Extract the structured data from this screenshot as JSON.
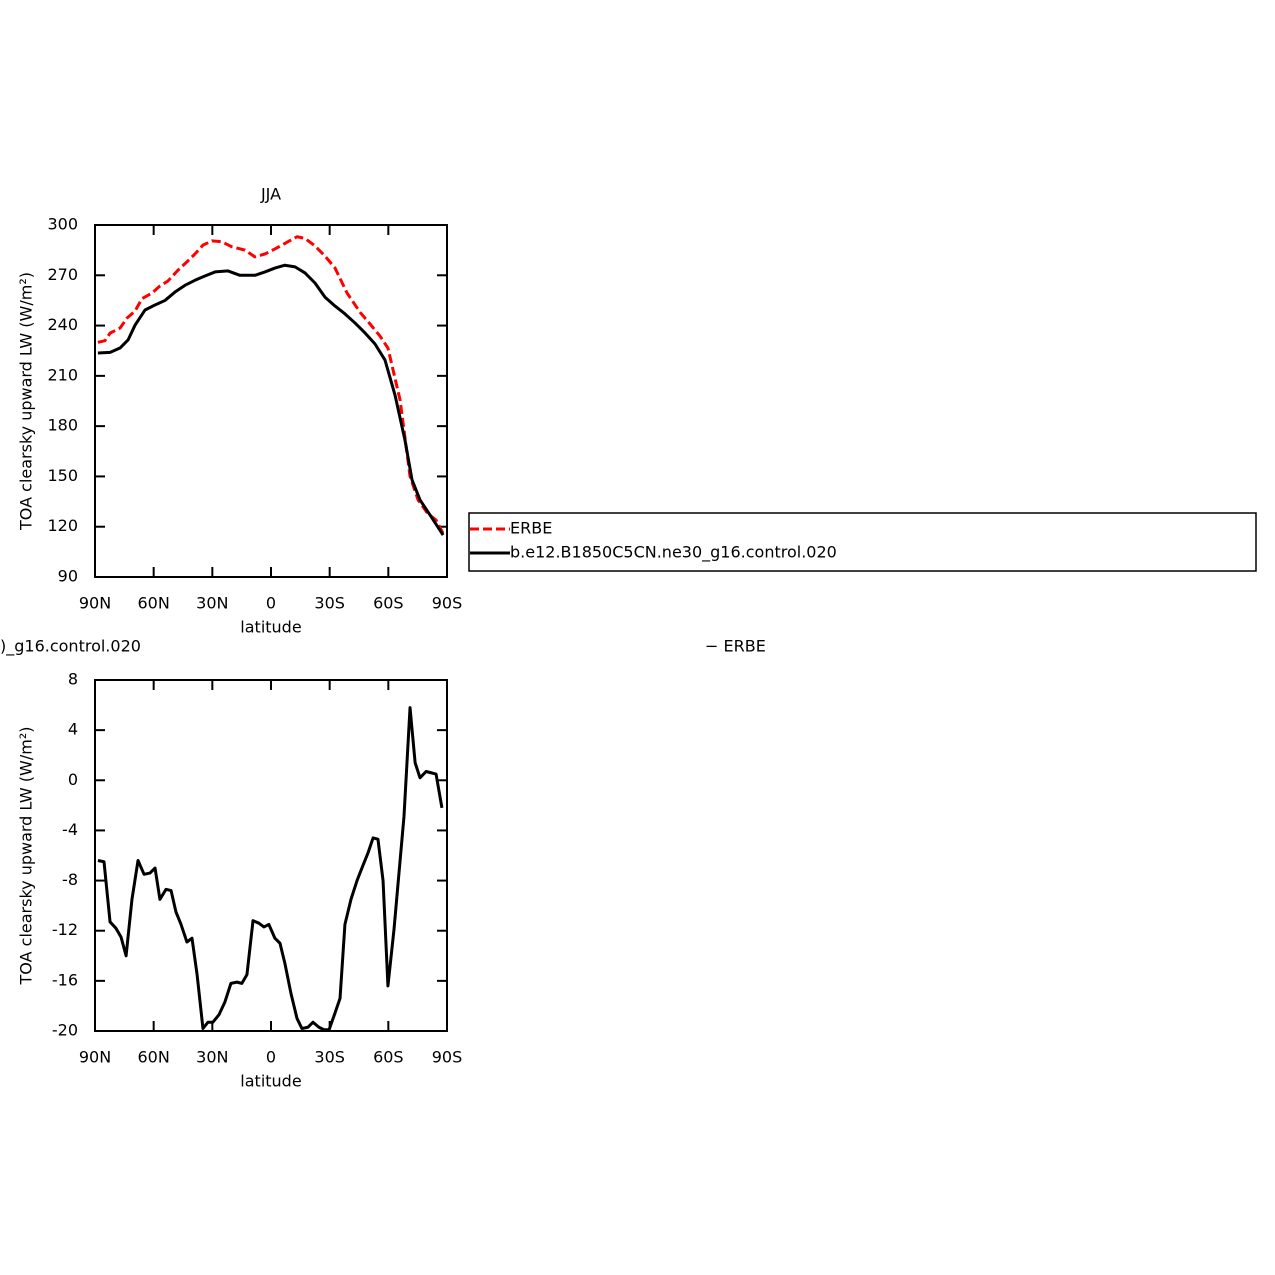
{
  "chart_data": [
    {
      "type": "line",
      "title": "JJA",
      "xlabel": "latitude",
      "ylabel": "TOA clearsky upward LW (W/m²)",
      "xlim": [
        90,
        -90
      ],
      "xticks": [
        {
          "value": 90,
          "label": "90N"
        },
        {
          "value": 60,
          "label": "60N"
        },
        {
          "value": 30,
          "label": "30N"
        },
        0,
        {
          "value": -30,
          "label": "30S"
        },
        {
          "value": -60,
          "label": "60S"
        },
        {
          "value": -90,
          "label": "90S"
        }
      ],
      "ylim": [
        90,
        300
      ],
      "yticks": [
        90,
        120,
        150,
        180,
        210,
        240,
        270,
        300
      ],
      "series": [
        {
          "name": "ERBE",
          "color": "#ff0000",
          "dashed": true,
          "x": [
            88.5,
            84.9,
            82.3,
            77.2,
            73.6,
            69.5,
            66,
            60.9,
            56.8,
            52.7,
            47.6,
            43,
            38.9,
            34.8,
            30.2,
            25.1,
            20,
            13.3,
            8.2,
            3.1,
            -2,
            -7.1,
            -13.3,
            -17.4,
            -22.5,
            -27.6,
            -32.7,
            -38.9,
            -45.5,
            -50.6,
            -55.7,
            -59.8,
            -66,
            -71.1,
            -75.2,
            -80.3,
            -84.4,
            -88
          ],
          "values": [
            230,
            231,
            235.5,
            238.5,
            244.5,
            248.7,
            256,
            259.4,
            263.6,
            266.6,
            273,
            278,
            282.7,
            288,
            290.5,
            290,
            287,
            285,
            281,
            282.7,
            285.7,
            289,
            293,
            292,
            287.5,
            281.5,
            274.4,
            259.4,
            248,
            241,
            233.8,
            226.6,
            195.6,
            150,
            136,
            127.6,
            124,
            116
          ]
        },
        {
          "name": "b.e12.B1850C5CN.ne30_g16.control.020",
          "color": "#000000",
          "dashed": false,
          "x": [
            88.5,
            82.3,
            77.2,
            73.1,
            69.5,
            64.4,
            59.3,
            54.2,
            49.1,
            44,
            38.9,
            33.8,
            28.6,
            22,
            15.9,
            8.2,
            3.1,
            -2,
            -7.1,
            -12.3,
            -17.4,
            -22.5,
            -27.6,
            -32.7,
            -37.8,
            -43,
            -48.1,
            -53.2,
            -58.3,
            -63.4,
            -68.5,
            -72.1,
            -76.2,
            -81.3,
            -88
          ],
          "values": [
            223.6,
            224,
            226.6,
            231.4,
            240.3,
            249.3,
            252.3,
            255,
            260,
            264,
            267,
            269.6,
            272,
            272.6,
            270,
            270,
            272,
            274.3,
            276,
            275,
            271.4,
            265.4,
            257,
            251.7,
            247,
            241.5,
            235.6,
            229,
            219.4,
            198.6,
            171.7,
            148,
            136,
            127,
            115
          ]
        }
      ]
    },
    {
      "type": "line",
      "title_fragments": [
        ")_g16.control.020",
        "− ERBE"
      ],
      "xlabel": "latitude",
      "ylabel": "TOA clearsky upward LW (W/m²)",
      "xlim": [
        90,
        -90
      ],
      "xticks": [
        {
          "value": 90,
          "label": "90N"
        },
        {
          "value": 60,
          "label": "60N"
        },
        {
          "value": 30,
          "label": "30N"
        },
        0,
        {
          "value": -30,
          "label": "30S"
        },
        {
          "value": -60,
          "label": "60S"
        },
        {
          "value": -90,
          "label": "90S"
        }
      ],
      "ylim": [
        -20,
        8
      ],
      "yticks": [
        -20,
        -16,
        -12,
        -8,
        -4,
        0,
        4,
        8
      ],
      "series": [
        {
          "color": "#000000",
          "dashed": false,
          "x": [
            88.5,
            85.4,
            82.3,
            79.3,
            76.7,
            74.1,
            71.1,
            68,
            64.9,
            61.9,
            59.3,
            56.8,
            53.7,
            51.1,
            48.6,
            46,
            43,
            40.4,
            37.8,
            34.8,
            32.2,
            29.7,
            26.6,
            23.6,
            20.5,
            17.4,
            14.9,
            12.3,
            9.2,
            6.2,
            3.6,
            1.1,
            -2,
            -4.6,
            -7.1,
            -10.2,
            -13.3,
            -15.8,
            -18.9,
            -21.5,
            -24.5,
            -27.1,
            -29.7,
            -32.2,
            -35.3,
            -37.8,
            -40.9,
            -44,
            -47,
            -49.6,
            -52.2,
            -54.7,
            -57.3,
            -59.8,
            -62.9,
            -65.5,
            -68,
            -71.1,
            -73.7,
            -76.2,
            -79.3,
            -81.8,
            -84.4,
            -87.4
          ],
          "values": [
            -6.4,
            -6.5,
            -11.3,
            -11.8,
            -12.5,
            -14,
            -9.5,
            -6.4,
            -7.5,
            -7.4,
            -7,
            -9.5,
            -8.7,
            -8.8,
            -10.5,
            -11.5,
            -12.9,
            -12.6,
            -15.5,
            -19.8,
            -19.3,
            -19.3,
            -18.7,
            -17.7,
            -16.2,
            -16.1,
            -16.2,
            -15.5,
            -11.2,
            -11.4,
            -11.7,
            -11.5,
            -12.6,
            -13,
            -14.6,
            -17,
            -19,
            -19.8,
            -19.7,
            -19.3,
            -19.7,
            -19.9,
            -19.9,
            -18.8,
            -17.4,
            -11.5,
            -9.5,
            -8,
            -6.8,
            -5.8,
            -4.6,
            -4.7,
            -8,
            -16.4,
            -11.9,
            -7.3,
            -2.9,
            5.8,
            1.4,
            0.2,
            0.7,
            0.6,
            0.5,
            -2.2
          ]
        }
      ]
    }
  ]
}
